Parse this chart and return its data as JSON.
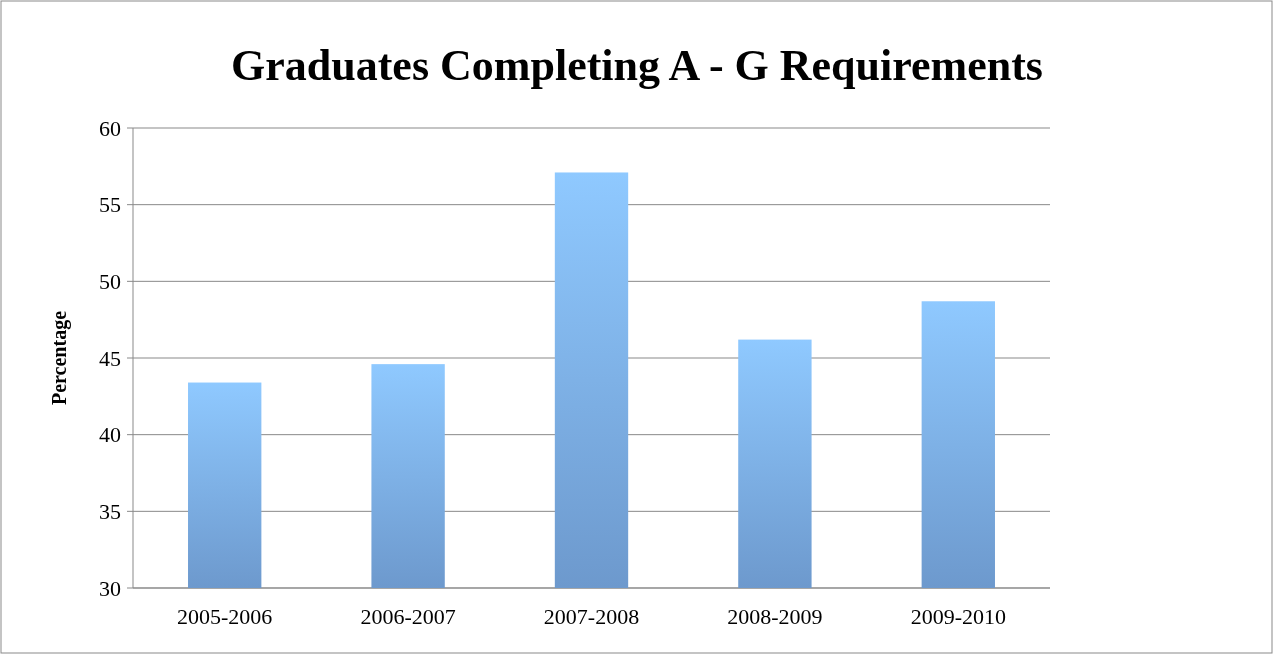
{
  "chart_data": {
    "type": "bar",
    "title": "Graduates Completing A - G Requirements",
    "ylabel": "Percentage",
    "categories": [
      "2005-2006",
      "2006-2007",
      "2007-2008",
      "2008-2009",
      "2009-2010"
    ],
    "values": [
      43.4,
      44.6,
      57.1,
      46.2,
      48.7
    ],
    "color": "#7eb1ec",
    "ylim": [
      30,
      60
    ],
    "yticks": [
      30,
      35,
      40,
      45,
      50,
      55,
      60
    ],
    "grid": "y",
    "legend": false
  }
}
